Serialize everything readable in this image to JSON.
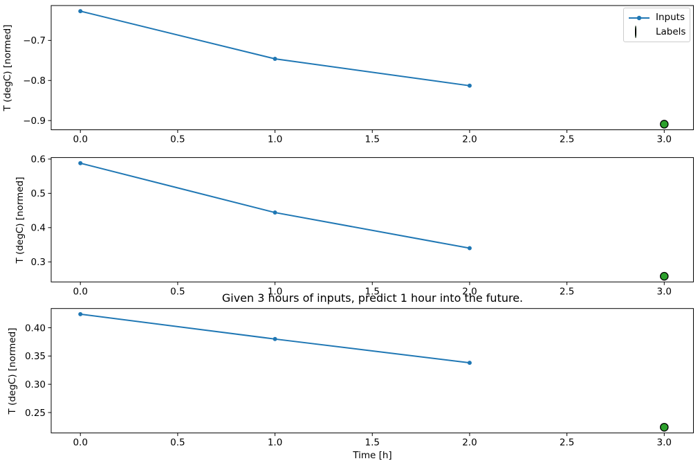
{
  "figure": {
    "title": "Given 3 hours of inputs, predict 1 hour into the future.",
    "xlabel": "Time [h]",
    "background": "#ffffff",
    "text_color": "#000000"
  },
  "legend": {
    "items": [
      {
        "label": "Inputs",
        "marker": "line-with-dot",
        "color": "#1f77b4"
      },
      {
        "label": "Labels",
        "marker": "circle",
        "color": "#2ca02c",
        "edge_color": "#000000"
      }
    ]
  },
  "chart_data": [
    {
      "type": "line",
      "subplot": "top",
      "title": "",
      "xlabel": "",
      "ylabel": "T (degC) [normed]",
      "x": [
        0,
        1,
        2
      ],
      "series": [
        {
          "name": "Inputs",
          "values": [
            -0.627,
            -0.746,
            -0.813
          ],
          "color": "#1f77b4",
          "marker": "dot"
        }
      ],
      "labels_series": {
        "name": "Labels",
        "x": 3,
        "y": -0.909,
        "color": "#2ca02c",
        "edge_color": "#000000"
      },
      "xlim": [
        -0.15,
        3.15
      ],
      "ylim": [
        -0.923,
        -0.613
      ],
      "xtick_values": [
        0.0,
        0.5,
        1.0,
        1.5,
        2.0,
        2.5,
        3.0
      ],
      "xticks": [
        "0.0",
        "0.5",
        "1.0",
        "1.5",
        "2.0",
        "2.5",
        "3.0"
      ],
      "ytick_values": [
        -0.7,
        -0.8,
        -0.9
      ],
      "yticks": [
        "−0.7",
        "−0.8",
        "−0.9"
      ],
      "grid": false,
      "legend": true,
      "legend_position": "upper right"
    },
    {
      "type": "line",
      "subplot": "middle",
      "title": "",
      "xlabel": "",
      "ylabel": "T (degC) [normed]",
      "x": [
        0,
        1,
        2
      ],
      "series": [
        {
          "name": "Inputs",
          "values": [
            0.588,
            0.444,
            0.34
          ],
          "color": "#1f77b4",
          "marker": "dot"
        }
      ],
      "labels_series": {
        "name": "Labels",
        "x": 3,
        "y": 0.258,
        "color": "#2ca02c",
        "edge_color": "#000000"
      },
      "xlim": [
        -0.15,
        3.15
      ],
      "ylim": [
        0.2415,
        0.6045
      ],
      "xtick_values": [
        0.0,
        0.5,
        1.0,
        1.5,
        2.0,
        2.5,
        3.0
      ],
      "xticks": [
        "0.0",
        "0.5",
        "1.0",
        "1.5",
        "2.0",
        "2.5",
        "3.0"
      ],
      "ytick_values": [
        0.6,
        0.5,
        0.4,
        0.3
      ],
      "yticks": [
        "0.6",
        "0.5",
        "0.4",
        "0.3"
      ],
      "grid": false,
      "legend": false
    },
    {
      "type": "line",
      "subplot": "bottom",
      "title": "Given 3 hours of inputs, predict 1 hour into the future.",
      "xlabel": "Time [h]",
      "ylabel": "T (degC) [normed]",
      "x": [
        0,
        1,
        2
      ],
      "series": [
        {
          "name": "Inputs",
          "values": [
            0.424,
            0.38,
            0.338
          ],
          "color": "#1f77b4",
          "marker": "dot"
        }
      ],
      "labels_series": {
        "name": "Labels",
        "x": 3,
        "y": 0.224,
        "color": "#2ca02c",
        "edge_color": "#000000"
      },
      "xlim": [
        -0.15,
        3.15
      ],
      "ylim": [
        0.214,
        0.434
      ],
      "xtick_values": [
        0.0,
        0.5,
        1.0,
        1.5,
        2.0,
        2.5,
        3.0
      ],
      "xticks": [
        "0.0",
        "0.5",
        "1.0",
        "1.5",
        "2.0",
        "2.5",
        "3.0"
      ],
      "ytick_values": [
        0.4,
        0.35,
        0.3,
        0.25
      ],
      "yticks": [
        "0.40",
        "0.35",
        "0.30",
        "0.25"
      ],
      "grid": false,
      "legend": false
    }
  ]
}
